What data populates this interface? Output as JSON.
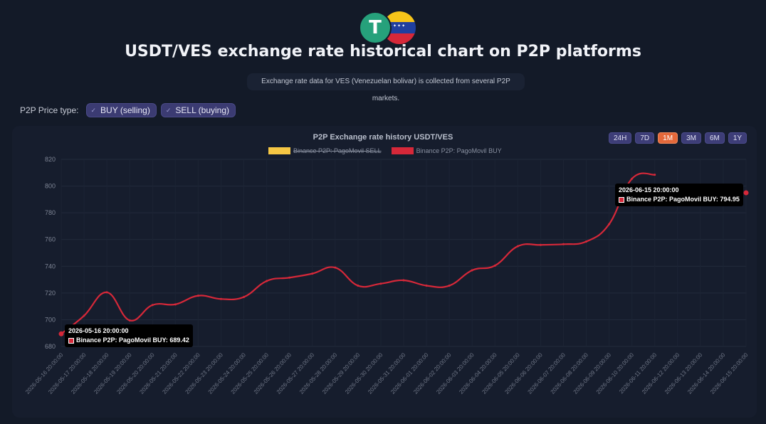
{
  "header": {
    "title": "USDT/VES exchange rate historical chart on P2P platforms",
    "subtitle": "Exchange rate data for VES (Venezuelan bolivar) is collected from several P2P markets."
  },
  "logos": {
    "left": "usdt-tether-logo",
    "right": "venezuela-flag"
  },
  "price_type": {
    "label": "P2P Price type:",
    "options": [
      {
        "label": "BUY (selling)",
        "checked": true
      },
      {
        "label": "SELL (buying)",
        "checked": true
      }
    ]
  },
  "ranges": [
    {
      "label": "24H",
      "active": false
    },
    {
      "label": "7D",
      "active": false
    },
    {
      "label": "1M",
      "active": true
    },
    {
      "label": "3M",
      "active": false
    },
    {
      "label": "6M",
      "active": false
    },
    {
      "label": "1Y",
      "active": false
    }
  ],
  "tooltips": [
    {
      "title": "2026-05-16 20:00:00",
      "text": "Binance P2P: PagoMovil BUY: 689.42"
    },
    {
      "title": "2026-06-15 20:00:00",
      "text": "Binance P2P: PagoMovil BUY: 794.95"
    }
  ],
  "colors": {
    "buy_line": "#d62839",
    "sell_line": "#f6c744",
    "accent_active": "#e4683a"
  },
  "chart_data": {
    "type": "line",
    "title": "P2P Exchange rate history USDT/VES",
    "legend": [
      {
        "name": "Binance P2P: PagoMovil SELL",
        "color": "#f6c744",
        "hidden": true
      },
      {
        "name": "Binance P2P: PagoMovil BUY",
        "color": "#d62839",
        "hidden": false
      }
    ],
    "legend_position": "top-center",
    "ylim": [
      680,
      820
    ],
    "yticks": [
      680,
      700,
      720,
      740,
      760,
      780,
      800,
      820
    ],
    "grid": true,
    "x": [
      "2026-05-16 20:00:00",
      "2026-05-17 20:00:00",
      "2026-05-18 20:00:00",
      "2026-05-19 20:00:00",
      "2026-05-20 20:00:00",
      "2026-05-21 20:00:00",
      "2026-05-22 20:00:00",
      "2026-05-23 20:00:00",
      "2026-05-24 20:00:00",
      "2026-05-25 20:00:00",
      "2026-05-26 20:00:00",
      "2026-05-27 20:00:00",
      "2026-05-28 20:00:00",
      "2026-05-29 20:00:00",
      "2026-05-30 20:00:00",
      "2026-05-31 20:00:00",
      "2026-06-01 20:00:00",
      "2026-06-02 20:00:00",
      "2026-06-03 20:00:00",
      "2026-06-04 20:00:00",
      "2026-06-05 20:00:00",
      "2026-06-06 20:00:00",
      "2026-06-07 20:00:00",
      "2026-06-08 20:00:00",
      "2026-06-09 20:00:00",
      "2026-06-10 20:00:00",
      "2026-06-11 20:00:00",
      "2026-06-12 20:00:00",
      "2026-06-13 20:00:00",
      "2026-06-14 20:00:00",
      "2026-06-15 20:00:00"
    ],
    "series": [
      {
        "name": "Binance P2P: PagoMovil BUY",
        "values": [
          689.42,
          703,
          720.5,
          699.5,
          711,
          711.5,
          718,
          715.5,
          717,
          729,
          731.5,
          734.5,
          739,
          725.5,
          727,
          729.5,
          725.5,
          725.5,
          737,
          740.5,
          755,
          756,
          756.5,
          758.5,
          771.5,
          805.5,
          808.5,
          null,
          null,
          null,
          794.95
        ]
      }
    ]
  }
}
